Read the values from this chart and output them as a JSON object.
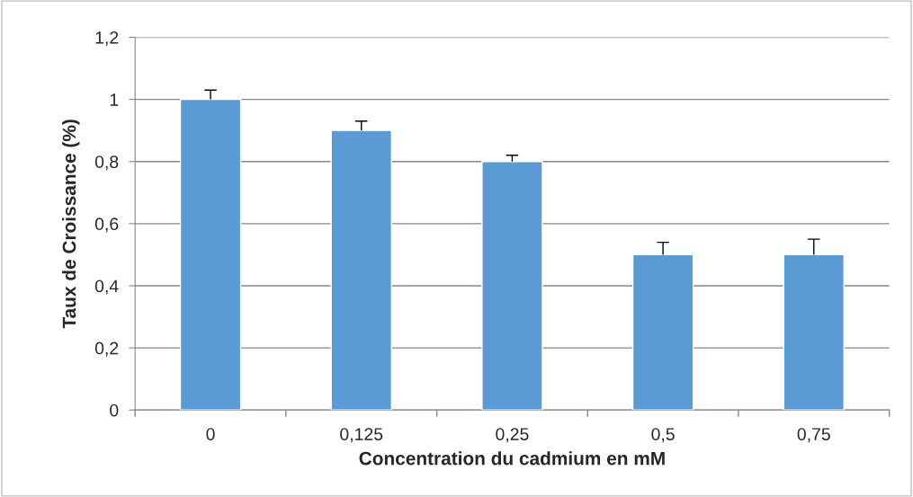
{
  "chart_data": {
    "type": "bar",
    "xlabel": "Concentration du cadmium en mM",
    "ylabel": "Taux de Croissance (%)",
    "categories": [
      "0",
      "0,125",
      "0,25",
      "0,5",
      "0,75"
    ],
    "values": [
      1.0,
      0.9,
      0.8,
      0.5,
      0.5
    ],
    "color": "#5b9bd5",
    "errors": [
      [
        1.0,
        1.03
      ],
      [
        0.9,
        0.93
      ],
      [
        0.8,
        0.82
      ],
      [
        0.5,
        0.54
      ],
      [
        0.5,
        0.55
      ]
    ],
    "ylim": [
      0,
      1.2
    ],
    "yticks": [
      0,
      {
        "value": 0.2,
        "label": "0,2"
      },
      {
        "value": 0.4,
        "label": "0,4"
      },
      {
        "value": 0.6,
        "label": "0,6"
      },
      {
        "value": 0.8,
        "label": "0,8"
      },
      1,
      {
        "value": 1.2,
        "label": "1,2"
      }
    ],
    "grid": "y"
  }
}
